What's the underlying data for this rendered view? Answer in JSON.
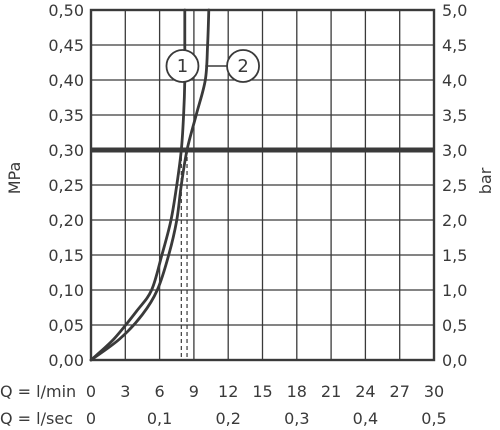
{
  "chart_data": {
    "type": "line",
    "title": "",
    "ylabel_left": "MPa",
    "ylabel_right": "bar",
    "x_primary": {
      "label": "Q = l/min",
      "range": [
        0,
        30
      ],
      "ticks": [
        "0",
        "3",
        "6",
        "9",
        "12",
        "15",
        "18",
        "21",
        "24",
        "27",
        "30"
      ]
    },
    "x_secondary": {
      "label": "Q = l/sec",
      "ticks": [
        {
          "value": 0,
          "label": "0"
        },
        {
          "value": 6,
          "label": "0,1"
        },
        {
          "value": 12,
          "label": "0,2"
        },
        {
          "value": 18,
          "label": "0,3"
        },
        {
          "value": 24,
          "label": "0,4"
        },
        {
          "value": 30,
          "label": "0,5"
        }
      ]
    },
    "y_left": {
      "range": [
        0,
        0.5
      ],
      "ticks": [
        "0,00",
        "0,05",
        "0,10",
        "0,15",
        "0,20",
        "0,25",
        "0,30",
        "0,35",
        "0,40",
        "0,45",
        "0,50"
      ]
    },
    "y_right": {
      "range": [
        0,
        5
      ],
      "ticks": [
        "0,0",
        "0,5",
        "1,0",
        "1,5",
        "2,0",
        "2,5",
        "3,0",
        "3,5",
        "4,0",
        "4,5",
        "5,0"
      ]
    },
    "grid": true,
    "reference_line": {
      "y": 0.3
    },
    "series": [
      {
        "name": "1",
        "color": "#3a3a3a",
        "points": [
          [
            0,
            0
          ],
          [
            2,
            0.03
          ],
          [
            4,
            0.07
          ],
          [
            5.3,
            0.1
          ],
          [
            6.2,
            0.15
          ],
          [
            7,
            0.2
          ],
          [
            7.5,
            0.25
          ],
          [
            7.9,
            0.3
          ],
          [
            8.1,
            0.35
          ],
          [
            8.2,
            0.4
          ],
          [
            8.2,
            0.45
          ],
          [
            8.2,
            0.5
          ]
        ]
      },
      {
        "name": "2",
        "color": "#3a3a3a",
        "points": [
          [
            0,
            0
          ],
          [
            2.5,
            0.03
          ],
          [
            4.5,
            0.065
          ],
          [
            5.8,
            0.1
          ],
          [
            6.8,
            0.15
          ],
          [
            7.5,
            0.2
          ],
          [
            7.9,
            0.25
          ],
          [
            8.4,
            0.3
          ],
          [
            9.2,
            0.35
          ],
          [
            10,
            0.4
          ],
          [
            10.2,
            0.45
          ],
          [
            10.3,
            0.5
          ]
        ]
      }
    ],
    "dashed_markers": [
      {
        "x": 7.9,
        "y_top": 0.3,
        "series": "1"
      },
      {
        "x": 8.4,
        "y_top": 0.3,
        "series": "2"
      }
    ],
    "annotations": [
      {
        "label": "1",
        "series": "1",
        "anchor": [
          8.0,
          0.42
        ],
        "pointer_to": [
          7.9,
          0.42
        ]
      },
      {
        "label": "2",
        "series": "2",
        "anchor": [
          13.3,
          0.42
        ],
        "pointer_to": [
          10.0,
          0.42
        ]
      }
    ]
  }
}
